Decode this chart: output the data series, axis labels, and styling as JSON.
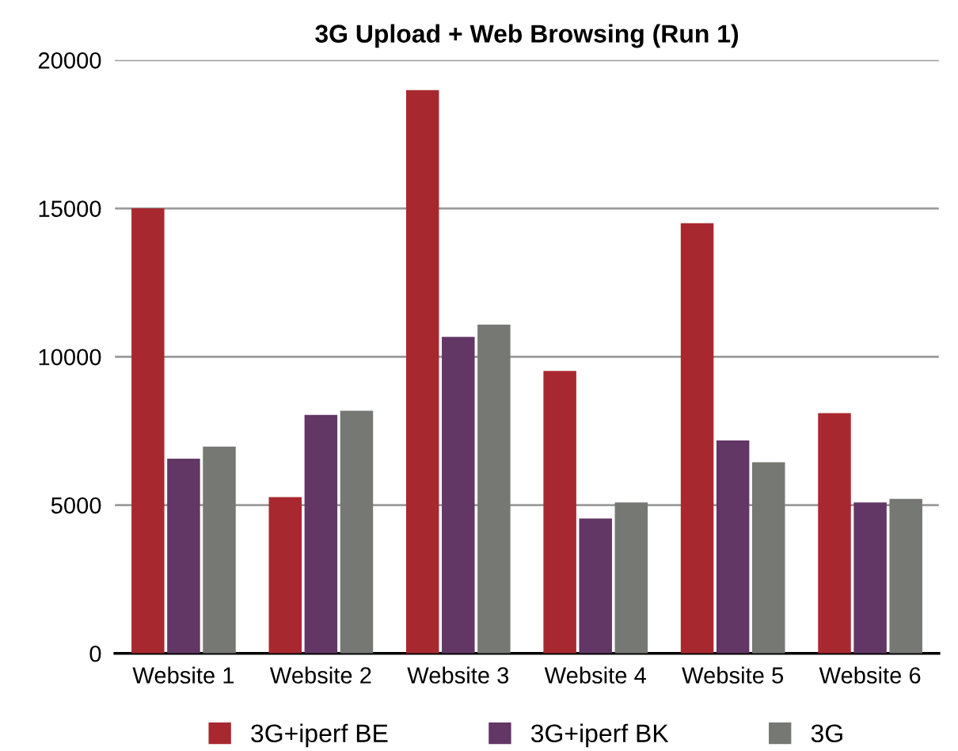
{
  "chart_data": {
    "type": "bar",
    "title": "3G Upload + Web Browsing (Run 1)",
    "categories": [
      "Website 1",
      "Website 2",
      "Website 3",
      "Website 4",
      "Website 5",
      "Website 6"
    ],
    "series": [
      {
        "name": "3G+iperf BE",
        "color": "#a8282f",
        "values": [
          15000,
          5270,
          18990,
          9520,
          14500,
          8100
        ]
      },
      {
        "name": "3G+iperf BK",
        "color": "#623665",
        "values": [
          6560,
          8040,
          10670,
          4550,
          7180,
          5090
        ]
      },
      {
        "name": "3G",
        "color": "#767873",
        "values": [
          6970,
          8180,
          11080,
          5090,
          6440,
          5210
        ]
      }
    ],
    "ylim": [
      0,
      20000
    ],
    "yticks": [
      0,
      5000,
      10000,
      15000,
      20000
    ],
    "grid": "y",
    "legend": "bottom"
  }
}
